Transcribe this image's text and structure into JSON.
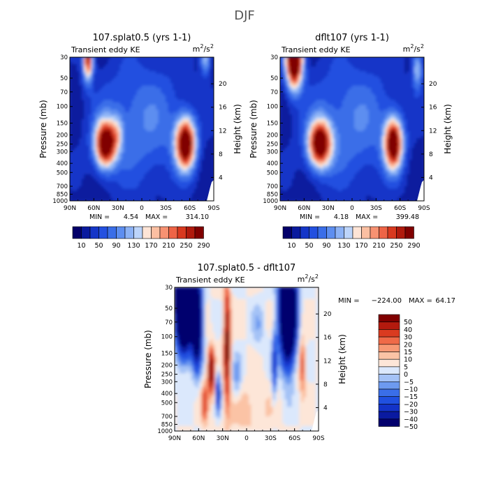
{
  "figure_title": "DJF",
  "chart_data": [
    {
      "type": "contour",
      "title": "107.splat0.5 (yrs 1-1)",
      "subtitle": "Transient eddy KE",
      "units": {
        "base": "m",
        "sup1": "2",
        "mid": "/s",
        "sup2": "2"
      },
      "xlabel": "",
      "ylabel": "Pressure (mb)",
      "y2label": "Height (km)",
      "x_ticks": [
        "90N",
        "60N",
        "30N",
        "0",
        "30S",
        "60S",
        "90S"
      ],
      "y_ticks": [
        30,
        50,
        70,
        100,
        150,
        200,
        250,
        300,
        400,
        500,
        700,
        850,
        1000
      ],
      "y2_ticks": [
        4,
        8,
        12,
        16,
        20
      ],
      "stats": {
        "min_label": "MIN =",
        "min": "4.54",
        "max_label": "MAX =",
        "max": "314.10"
      },
      "levels": [
        10,
        30,
        50,
        70,
        90,
        110,
        130,
        150,
        170,
        190,
        210,
        230,
        250,
        270,
        290
      ],
      "level_labels": [
        "10",
        "50",
        "90",
        "130",
        "170",
        "210",
        "250",
        "290"
      ],
      "maxima": [
        {
          "lat": 45,
          "p": 250,
          "value": 300
        },
        {
          "lat": -55,
          "p": 250,
          "value": 310
        },
        {
          "lat": 67,
          "p": 30,
          "value": 250
        }
      ]
    },
    {
      "type": "contour",
      "title": "dflt107 (yrs 1-1)",
      "subtitle": "Transient eddy KE",
      "units": {
        "base": "m",
        "sup1": "2",
        "mid": "/s",
        "sup2": "2"
      },
      "xlabel": "",
      "ylabel": "Pressure (mb)",
      "y2label": "Height (km)",
      "x_ticks": [
        "90N",
        "60N",
        "30N",
        "0",
        "30S",
        "60S",
        "90S"
      ],
      "y_ticks": [
        30,
        50,
        70,
        100,
        150,
        200,
        250,
        300,
        400,
        500,
        700,
        850,
        1000
      ],
      "y2_ticks": [
        4,
        8,
        12,
        16,
        20
      ],
      "stats": {
        "min_label": "MIN =",
        "min": "4.18",
        "max_label": "MAX =",
        "max": "399.48"
      },
      "levels": [
        10,
        30,
        50,
        70,
        90,
        110,
        130,
        150,
        170,
        190,
        210,
        230,
        250,
        270,
        290
      ],
      "level_labels": [
        "10",
        "50",
        "90",
        "130",
        "170",
        "210",
        "250",
        "290"
      ],
      "maxima": [
        {
          "lat": 40,
          "p": 250,
          "value": 290
        },
        {
          "lat": -52,
          "p": 250,
          "value": 295
        },
        {
          "lat": 72,
          "p": 30,
          "value": 399
        }
      ]
    },
    {
      "type": "contour",
      "title": "107.splat0.5 - dflt107",
      "subtitle": "Transient eddy KE",
      "units": {
        "base": "m",
        "sup1": "2",
        "mid": "/s",
        "sup2": "2"
      },
      "xlabel": "",
      "ylabel": "Pressure (mb)",
      "y2label": "Height (km)",
      "x_ticks": [
        "90N",
        "60N",
        "30N",
        "0",
        "30S",
        "60S",
        "90S"
      ],
      "y_ticks": [
        30,
        50,
        70,
        100,
        150,
        200,
        250,
        300,
        400,
        500,
        700,
        850,
        1000
      ],
      "y2_ticks": [
        4,
        8,
        12,
        16,
        20
      ],
      "stats": {
        "min_label": "MIN =",
        "min": "-224.00",
        "max_label": "MAX =",
        "max": "64.17"
      },
      "levels": [
        -50,
        -40,
        -30,
        -20,
        -15,
        -10,
        -5,
        0,
        5,
        10,
        15,
        20,
        30,
        40,
        50
      ],
      "level_labels": [
        "-50",
        "-40",
        "-30",
        "-20",
        "-15",
        "-10",
        "-5",
        "0",
        "5",
        "10",
        "15",
        "20",
        "30",
        "40",
        "50"
      ],
      "legend_position": "right"
    }
  ],
  "colors": {
    "seq": [
      "#04006a",
      "#0a1a9e",
      "#1536c8",
      "#2350e0",
      "#3a6ee8",
      "#5d8ef0",
      "#8cb2f5",
      "#bcd4fa",
      "#fde4d6",
      "#fbbfa2",
      "#f79272",
      "#ee6446",
      "#d8391f",
      "#b01a0d",
      "#800000"
    ],
    "div": [
      "#03006e",
      "#0a1aa0",
      "#1333c8",
      "#2050e0",
      "#3a6ee8",
      "#6d9af0",
      "#a4c2f6",
      "#dbe8fc",
      "#fde6d8",
      "#fbc3a5",
      "#f79874",
      "#ef6a48",
      "#da3b20",
      "#b41a0e",
      "#800000"
    ]
  }
}
